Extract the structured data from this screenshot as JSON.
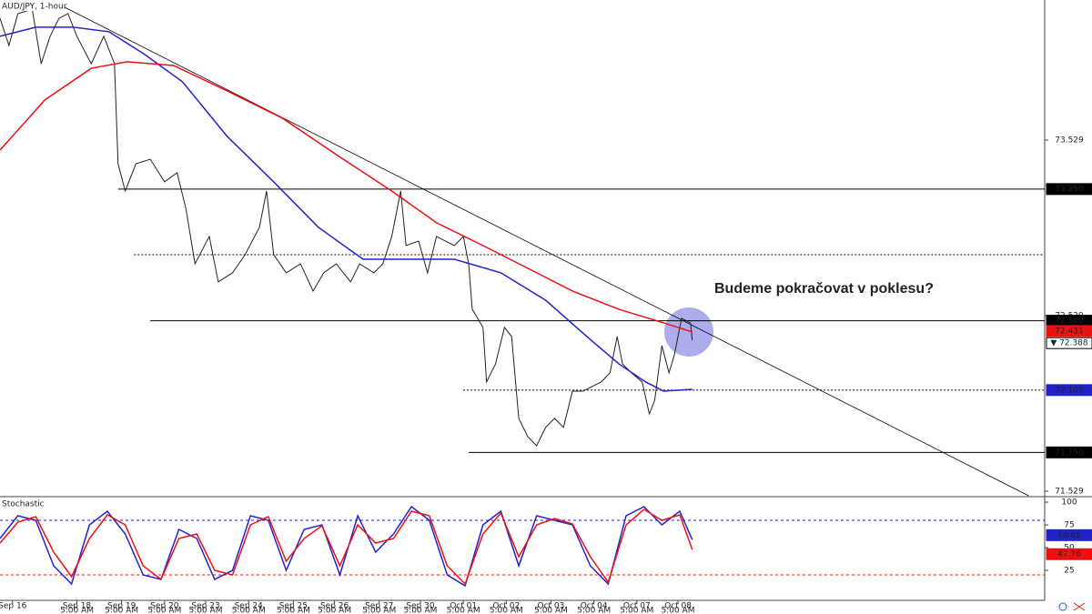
{
  "chart_data": [
    {
      "type": "line",
      "title": "AUD/JPY, 1-hour",
      "annotation": "Budeme pokračovat v poklesu?",
      "xlim": [
        0,
        584
      ],
      "ylim": [
        71.503,
        74.327
      ],
      "yticks": [
        73.529,
        72.529,
        71.529
      ],
      "xticks": [
        {
          "value": 7,
          "label": "Sep 16"
        },
        {
          "value": 43,
          "label": "Sep 18"
        },
        {
          "value": 68,
          "label": "Sep 19"
        },
        {
          "value": 92,
          "label": "Sep 20"
        },
        {
          "value": 115,
          "label": "Sep 23"
        },
        {
          "value": 139,
          "label": "Sep 24"
        },
        {
          "value": 164,
          "label": "Sep 25"
        },
        {
          "value": 187,
          "label": "Sep 26"
        },
        {
          "value": 212,
          "label": "Sep 27"
        },
        {
          "value": 235,
          "label": "Sep 30"
        },
        {
          "value": 259,
          "label": "Oct 01"
        },
        {
          "value": 283,
          "label": "Oct 02"
        },
        {
          "value": 308,
          "label": "Oct 03"
        },
        {
          "value": 332,
          "label": "Oct 04"
        },
        {
          "value": 356,
          "label": "Oct 07"
        },
        {
          "value": 379,
          "label": "Oct 08"
        }
      ],
      "xtick_times": [
        null,
        "5:00 AM",
        "5:00 AM",
        "5:00 AM",
        "5:00 AM",
        "5:00 AM",
        "5:00 AM",
        "5:00 AM",
        "5:00 AM",
        "5:00 AM",
        "5:00 AM",
        "5:00 AM",
        "5:00 AM",
        "5:00 AM",
        "5:00 AM",
        "5:00 AM"
      ],
      "series": [
        {
          "color": "#222222",
          "x": [
            0,
            5,
            10,
            18,
            23,
            28,
            33,
            38,
            43,
            51,
            58,
            64,
            66,
            70,
            76,
            84,
            92,
            99,
            104,
            109,
            117,
            122,
            130,
            137,
            145,
            149,
            153,
            160,
            168,
            175,
            181,
            188,
            196,
            201,
            209,
            214,
            219,
            224,
            227,
            234,
            239,
            244,
            249,
            254,
            259,
            262,
            264,
            270,
            272,
            277,
            282,
            286,
            290,
            295,
            300,
            305,
            310,
            315,
            320,
            326,
            331,
            336,
            341,
            345,
            348,
            353,
            359,
            363,
            366,
            370,
            374,
            377,
            381,
            386,
            387
          ],
          "values": [
            74.223,
            74.068,
            74.249,
            74.275,
            73.964,
            74.12,
            74.223,
            74.249,
            74.12,
            73.964,
            74.12,
            73.964,
            73.394,
            73.239,
            73.394,
            73.42,
            73.291,
            73.343,
            73.135,
            72.824,
            72.98,
            72.721,
            72.773,
            72.876,
            73.032,
            73.239,
            72.876,
            72.773,
            72.824,
            72.669,
            72.773,
            72.824,
            72.721,
            72.824,
            72.773,
            72.824,
            72.98,
            73.239,
            72.928,
            72.954,
            72.773,
            72.98,
            72.954,
            72.928,
            72.98,
            72.824,
            72.565,
            72.462,
            72.151,
            72.254,
            72.462,
            72.41,
            71.944,
            71.84,
            71.788,
            71.892,
            71.944,
            71.892,
            72.099,
            72.099,
            72.125,
            72.151,
            72.203,
            72.41,
            72.254,
            72.203,
            72.151,
            71.969,
            72.047,
            72.358,
            72.203,
            72.306,
            72.514,
            72.487,
            72.388
          ]
        },
        {
          "color": "#2222cc",
          "x": [
            0,
            20,
            41,
            61,
            81,
            102,
            127,
            153,
            178,
            203,
            229,
            254,
            280,
            305,
            331,
            346,
            361,
            371,
            387
          ],
          "values": [
            74.12,
            74.172,
            74.172,
            74.146,
            74.016,
            73.861,
            73.55,
            73.291,
            73.032,
            72.85,
            72.85,
            72.85,
            72.773,
            72.617,
            72.384,
            72.254,
            72.151,
            72.099,
            72.109
          ]
        },
        {
          "color": "#ee1111",
          "x": [
            0,
            25,
            51,
            71,
            97,
            127,
            158,
            188,
            219,
            244,
            270,
            295,
            320,
            346,
            371,
            387
          ],
          "values": [
            73.472,
            73.757,
            73.938,
            73.975,
            73.954,
            73.809,
            73.653,
            73.446,
            73.239,
            73.058,
            72.928,
            72.799,
            72.669,
            72.565,
            72.488,
            72.436
          ]
        }
      ],
      "trendline": {
        "x": [
          36,
          575
        ],
        "values": [
          74.286,
          71.503
        ]
      },
      "levels": [
        {
          "value": 73.25,
          "label": "73.250",
          "x_start": 66,
          "style": "solid",
          "tag_color": "#000000"
        },
        {
          "value": 72.876,
          "x_start": 75,
          "style": "dotted"
        },
        {
          "value": 72.5,
          "label": "72.500",
          "x_start": 84,
          "style": "solid",
          "tag_color": "#000000"
        },
        {
          "value": 72.105,
          "label": "72.105",
          "x_start": 259,
          "style": "dotted",
          "tag_color": "#2222cc"
        },
        {
          "value": 71.75,
          "label": "71.750",
          "x_start": 262,
          "style": "solid",
          "tag_color": "#000000"
        }
      ],
      "price_tags": [
        {
          "value": 72.431,
          "label": "72.431",
          "color": "#ee1111"
        },
        {
          "value": 72.388,
          "label": "▼ 72.388",
          "color": "#ffffff"
        }
      ]
    },
    {
      "type": "line",
      "title": "Stochastic",
      "xlim": [
        0,
        584
      ],
      "ylim": [
        -8,
        105
      ],
      "yticks": [
        100,
        75,
        50,
        25
      ],
      "levels": [
        {
          "value": 80,
          "color": "#2222cc"
        },
        {
          "value": 20,
          "color": "#ee1111"
        }
      ],
      "series": [
        {
          "color": "#2222cc",
          "x": [
            0,
            10,
            20,
            30,
            40,
            50,
            60,
            70,
            80,
            90,
            100,
            110,
            120,
            130,
            140,
            150,
            160,
            170,
            180,
            190,
            200,
            210,
            220,
            230,
            240,
            250,
            260,
            270,
            280,
            290,
            300,
            310,
            320,
            330,
            340,
            350,
            360,
            370,
            380,
            387
          ],
          "values": [
            60,
            85,
            80,
            30,
            10,
            75,
            90,
            65,
            20,
            15,
            70,
            60,
            15,
            25,
            85,
            80,
            25,
            70,
            75,
            20,
            85,
            45,
            65,
            95,
            80,
            20,
            8,
            75,
            90,
            30,
            85,
            80,
            75,
            30,
            10,
            85,
            95,
            75,
            90,
            58.65
          ]
        },
        {
          "color": "#ee1111",
          "x": [
            0,
            10,
            20,
            30,
            40,
            50,
            60,
            70,
            80,
            90,
            100,
            110,
            120,
            130,
            140,
            150,
            160,
            170,
            180,
            190,
            200,
            210,
            220,
            230,
            240,
            250,
            260,
            270,
            280,
            290,
            300,
            310,
            320,
            330,
            340,
            350,
            360,
            370,
            380,
            387
          ],
          "values": [
            55,
            78,
            84,
            45,
            18,
            60,
            86,
            75,
            30,
            15,
            60,
            65,
            25,
            20,
            75,
            84,
            35,
            60,
            74,
            30,
            75,
            55,
            60,
            90,
            85,
            30,
            10,
            65,
            88,
            40,
            75,
            82,
            76,
            40,
            12,
            75,
            92,
            80,
            86,
            47.76
          ]
        }
      ]
    }
  ]
}
